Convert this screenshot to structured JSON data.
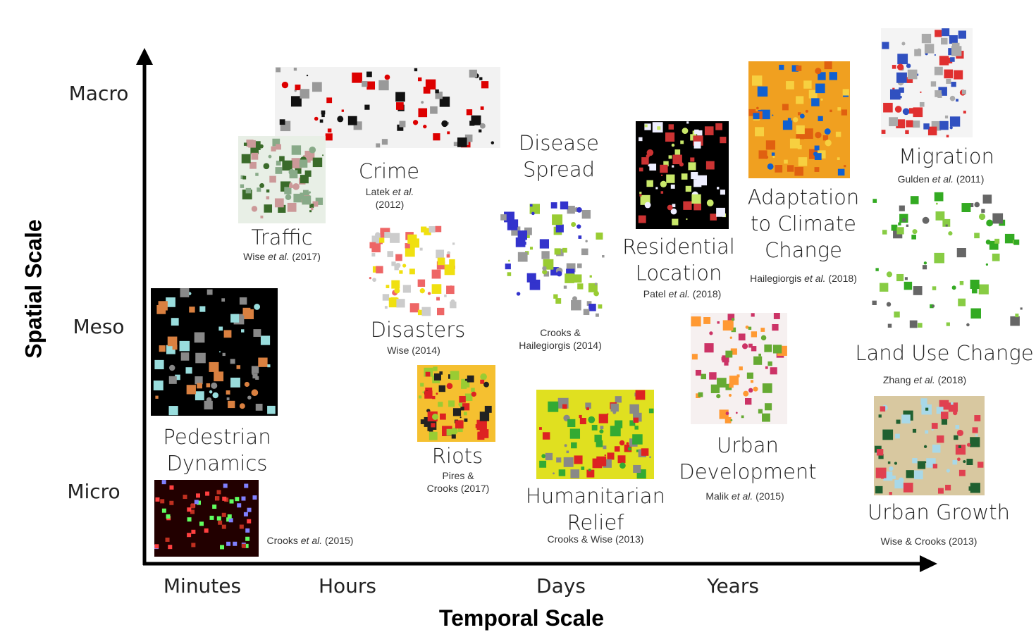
{
  "axes": {
    "y_title": "Spatial Scale",
    "x_title": "Temporal Scale",
    "y_ticks": [
      "Macro",
      "Meso",
      "Micro"
    ],
    "x_ticks": [
      "Minutes",
      "Hours",
      "Days",
      "Years"
    ]
  },
  "items": [
    {
      "label": [
        "Crime"
      ],
      "cite": [
        [
          "Latek ",
          {
            "text": "et al.",
            "italic": true
          }
        ],
        [
          "(2012)"
        ]
      ]
    },
    {
      "label": [
        "Traffic"
      ],
      "cite": [
        [
          "Wise  ",
          {
            "text": "et al.",
            "italic": true
          },
          " (2017)"
        ]
      ]
    },
    {
      "label": [
        "Disease",
        "Spread"
      ],
      "cite": [
        [
          "Crooks &"
        ],
        [
          "Hailegiorgis (2014)"
        ]
      ]
    },
    {
      "label": [
        "Residential",
        "Location"
      ],
      "cite": [
        [
          "Patel ",
          {
            "text": "et al.",
            "italic": true
          },
          " (2018)"
        ]
      ]
    },
    {
      "label": [
        "Adaptation",
        "to Climate",
        "Change"
      ],
      "cite": [
        [
          "Hailegiorgis ",
          {
            "text": "et al.",
            "italic": true
          },
          " (2018)"
        ]
      ]
    },
    {
      "label": [
        "Migration"
      ],
      "cite": [
        [
          "Gulden ",
          {
            "text": "et al.",
            "italic": true
          },
          " (2011)"
        ]
      ]
    },
    {
      "label": [
        "Land Use Change"
      ],
      "cite": [
        [
          "Zhang ",
          {
            "text": "et al.",
            "italic": true
          },
          " (2018)"
        ]
      ]
    },
    {
      "label": [
        "Pedestrian",
        "Dynamics"
      ],
      "cite": [
        [
          "Crooks ",
          {
            "text": "et al.",
            "italic": true
          },
          " (2015)"
        ]
      ]
    },
    {
      "label": [
        "Disasters"
      ],
      "cite": [
        [
          "Wise (2014)"
        ]
      ]
    },
    {
      "label": [
        "Riots"
      ],
      "cite": [
        [
          "Pires &"
        ],
        [
          "Crooks (2017)"
        ]
      ]
    },
    {
      "label": [
        "Humanitarian",
        "Relief"
      ],
      "cite": [
        [
          "Crooks & Wise (2013)"
        ]
      ]
    },
    {
      "label": [
        "Urban",
        "Development"
      ],
      "cite": [
        [
          "Malik ",
          {
            "text": "et al.",
            "italic": true
          },
          " (2015)"
        ]
      ]
    },
    {
      "label": [
        "Urban Growth"
      ],
      "cite": [
        [
          "Wise & Crooks (2013)"
        ]
      ]
    }
  ]
}
